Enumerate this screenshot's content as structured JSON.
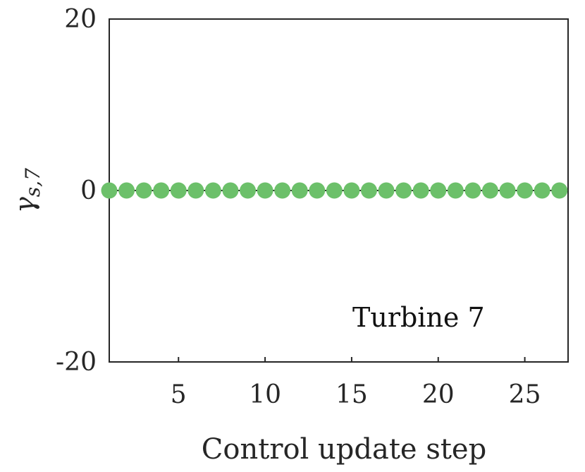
{
  "chart_data": {
    "type": "scatter",
    "xlabel": "Control update step",
    "ylabel": "γs,7",
    "ylabel_main": "γ",
    "ylabel_sub": "s,7",
    "annotation": "Turbine 7",
    "xlim": [
      1,
      27.5
    ],
    "ylim": [
      -20,
      20
    ],
    "xticks": [
      5,
      10,
      15,
      20,
      25
    ],
    "yticks": [
      -20,
      0,
      20
    ],
    "ytick_labels": [
      "-20",
      "0",
      "20"
    ],
    "grid": false,
    "marker_color": "#6cc06a",
    "line_color": "#262626",
    "series": [
      {
        "x": [
          1,
          2,
          3,
          4,
          5,
          6,
          7,
          8,
          9,
          10,
          11,
          12,
          13,
          14,
          15,
          16,
          17,
          18,
          19,
          20,
          21,
          22,
          23,
          24,
          25,
          26,
          27
        ],
        "values": [
          0,
          0,
          0,
          0,
          0,
          0,
          0,
          0,
          0,
          0,
          0,
          0,
          0,
          0,
          0,
          0,
          0,
          0,
          0,
          0,
          0,
          0,
          0,
          0,
          0,
          0,
          0
        ]
      }
    ]
  }
}
